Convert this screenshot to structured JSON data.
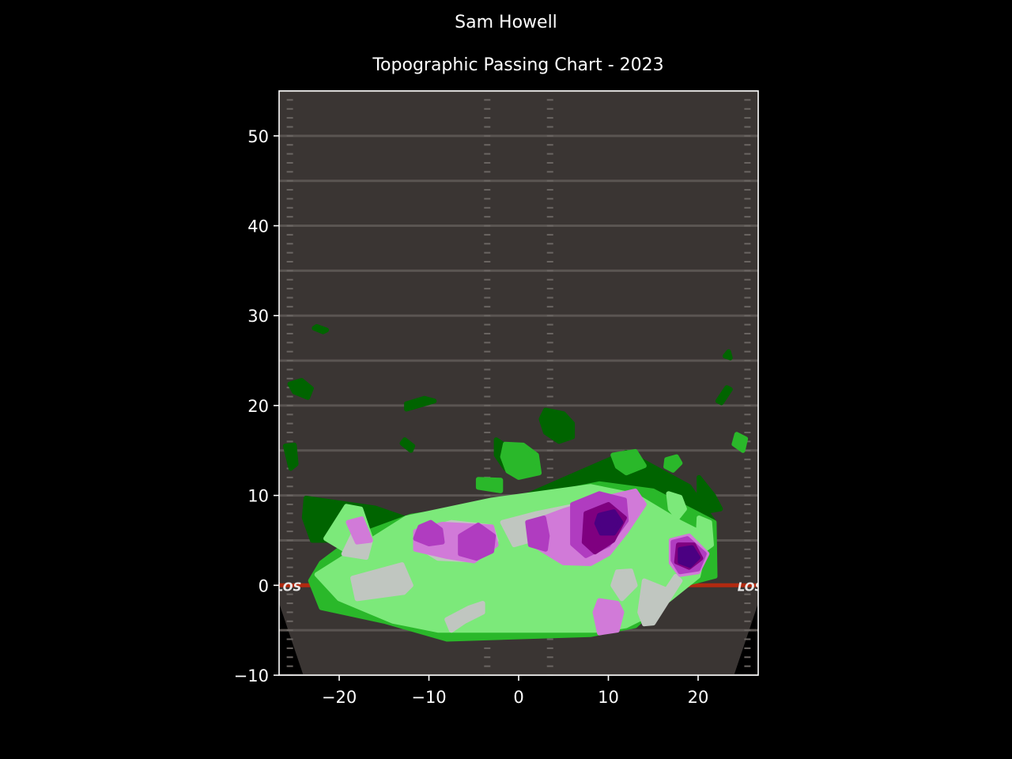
{
  "header": {
    "suptitle": "Sam Howell",
    "title": "Topographic Passing Chart - 2023"
  },
  "colors": {
    "background": "#000000",
    "field": "#3a3533",
    "yard_line": "#5a5552",
    "los_line": "#b22a10",
    "levels": [
      "#006400",
      "#2ab82a",
      "#7ce97a",
      "#c0c6c0",
      "#d17ad8",
      "#b03cc0",
      "#7f0080",
      "#4b0082"
    ]
  },
  "chart_data": {
    "type": "heatmap",
    "title": "Topographic Passing Chart - 2023",
    "suptitle": "Sam Howell",
    "xlabel": "",
    "ylabel": "",
    "xlim": [
      -26.7,
      26.7
    ],
    "ylim": [
      -10,
      55
    ],
    "xticks": [
      -20,
      -10,
      0,
      10,
      20
    ],
    "xtick_labels": [
      "−20",
      "−10",
      "0",
      "10",
      "20"
    ],
    "yticks": [
      -10,
      0,
      10,
      20,
      30,
      40,
      50
    ],
    "ytick_labels": [
      "−10",
      "0",
      "10",
      "20",
      "30",
      "40",
      "50"
    ],
    "line_of_scrimmage": 0,
    "field_label": "LOS",
    "grid": false,
    "legend": "none",
    "contour_levels": [
      {
        "level": 1,
        "color": "#006400",
        "regions": [
          [
            [
              -23.7,
              9.7
            ],
            [
              -16,
              8.6
            ],
            [
              -12.5,
              7.4
            ],
            [
              0,
              9.6
            ],
            [
              12,
              14.8
            ],
            [
              19,
              11
            ],
            [
              21.8,
              7
            ],
            [
              12,
              10
            ],
            [
              -20,
              5
            ],
            [
              -23,
              5
            ],
            [
              -23.9,
              7.5
            ]
          ],
          [
            [
              -2.5,
              16.2
            ],
            [
              -0.8,
              15.1
            ],
            [
              0,
              14
            ],
            [
              -0.5,
              13
            ],
            [
              -1.5,
              13
            ],
            [
              -2.5,
              14.5
            ]
          ],
          [
            [
              3,
              19.5
            ],
            [
              5,
              19.1
            ],
            [
              6,
              18
            ],
            [
              6,
              16.5
            ],
            [
              4.5,
              16
            ],
            [
              3,
              17
            ],
            [
              2.5,
              18.5
            ]
          ],
          [
            [
              -25.5,
              22.4
            ],
            [
              -24.2,
              22.8
            ],
            [
              -23.1,
              21.9
            ],
            [
              -23.5,
              20.9
            ],
            [
              -25,
              21.5
            ]
          ],
          [
            [
              -12.5,
              20.2
            ],
            [
              -10.5,
              20.8
            ],
            [
              -9.4,
              20.5
            ],
            [
              -12.5,
              19.6
            ]
          ],
          [
            [
              -22.5,
              28.8
            ],
            [
              -21.4,
              28.4
            ],
            [
              -21.8,
              28.2
            ],
            [
              -22.8,
              28.6
            ]
          ],
          [
            [
              22.2,
              20.5
            ],
            [
              23.2,
              22
            ],
            [
              23.6,
              21.8
            ],
            [
              22.6,
              20.3
            ]
          ],
          [
            [
              -26,
              15.5
            ],
            [
              -25.4,
              13
            ],
            [
              -24.8,
              13.5
            ],
            [
              -25,
              15.6
            ]
          ],
          [
            [
              -13,
              15.8
            ],
            [
              -12,
              15
            ],
            [
              -11.8,
              15.5
            ],
            [
              -12.7,
              16.2
            ]
          ],
          [
            [
              20.1,
              12
            ],
            [
              21.7,
              10
            ],
            [
              22.5,
              8.5
            ],
            [
              21.4,
              8.3
            ],
            [
              20.1,
              10.3
            ]
          ],
          [
            [
              23,
              25.5
            ],
            [
              23.4,
              26
            ],
            [
              23.6,
              25.3
            ]
          ]
        ]
      },
      {
        "level": 2,
        "color": "#2ab82a",
        "regions": [
          [
            [
              -22,
              2.5
            ],
            [
              -18,
              5.5
            ],
            [
              -12,
              7.7
            ],
            [
              0,
              9.5
            ],
            [
              9,
              11.3
            ],
            [
              15,
              10.5
            ],
            [
              21.8,
              7
            ],
            [
              21.9,
              1
            ],
            [
              18,
              0
            ],
            [
              13,
              -4.5
            ],
            [
              8,
              -5.5
            ],
            [
              -8,
              -6
            ],
            [
              -15,
              -4
            ],
            [
              -22,
              -2.5
            ],
            [
              -23.2,
              0.5
            ]
          ],
          [
            [
              -1.5,
              15.7
            ],
            [
              0.5,
              15.6
            ],
            [
              2,
              14.5
            ],
            [
              2.3,
              12.5
            ],
            [
              0,
              12
            ],
            [
              -1.2,
              12.7
            ],
            [
              -1.8,
              14.3
            ]
          ],
          [
            [
              10.5,
              14.5
            ],
            [
              13,
              14.9
            ],
            [
              14,
              13.3
            ],
            [
              12,
              12.5
            ],
            [
              11,
              13.2
            ]
          ],
          [
            [
              -4.5,
              11.8
            ],
            [
              -2,
              11.7
            ],
            [
              -2,
              10.5
            ],
            [
              -4.5,
              10.9
            ]
          ],
          [
            [
              16.5,
              14
            ],
            [
              17.6,
              14.3
            ],
            [
              18,
              13.6
            ],
            [
              17.2,
              12.8
            ],
            [
              16.4,
              13.2
            ]
          ],
          [
            [
              24.3,
              16.8
            ],
            [
              25.3,
              16.3
            ],
            [
              25,
              15
            ],
            [
              24,
              15.7
            ]
          ]
        ]
      },
      {
        "level": 3,
        "color": "#7ce97a",
        "regions": [
          [
            [
              -12.5,
              7.5
            ],
            [
              -3,
              9.5
            ],
            [
              8,
              11
            ],
            [
              13,
              10
            ],
            [
              18,
              7
            ],
            [
              21,
              5.5
            ],
            [
              20,
              1
            ],
            [
              15,
              -3
            ],
            [
              12,
              -4.5
            ],
            [
              9,
              -5
            ],
            [
              -9,
              -5
            ],
            [
              -14,
              -4
            ],
            [
              -20,
              -1.5
            ],
            [
              -22.5,
              1.2
            ]
          ],
          [
            [
              -19.2,
              8.8
            ],
            [
              -17.6,
              8.5
            ],
            [
              -16.4,
              5
            ],
            [
              -17.5,
              3.1
            ],
            [
              -19.5,
              4
            ],
            [
              -21.5,
              5.2
            ]
          ],
          [
            [
              16.7,
              10.2
            ],
            [
              18,
              9.8
            ],
            [
              18.5,
              8.5
            ],
            [
              17.7,
              7.5
            ],
            [
              16.9,
              8.5
            ]
          ],
          [
            [
              20.1,
              7.5
            ],
            [
              21.3,
              7
            ],
            [
              21.5,
              4.5
            ],
            [
              20.8,
              4
            ],
            [
              20,
              5.5
            ]
          ]
        ]
      },
      {
        "level": 4,
        "color": "#c0c6c0",
        "regions": [
          [
            [
              -18,
              -1.5
            ],
            [
              -12.8,
              -0.8
            ],
            [
              -12,
              0
            ],
            [
              -13,
              2.3
            ],
            [
              -18.5,
              0.8
            ]
          ],
          [
            [
              -8,
              -3.8
            ],
            [
              -5.5,
              -2.5
            ],
            [
              -4,
              -2
            ],
            [
              -4,
              -3
            ],
            [
              -6,
              -4
            ],
            [
              -7.5,
              -5
            ]
          ],
          [
            [
              -1.8,
              7
            ],
            [
              2,
              8
            ],
            [
              7,
              9
            ],
            [
              10,
              8.5
            ],
            [
              9,
              7
            ],
            [
              3,
              5.5
            ],
            [
              -0.5,
              4.5
            ]
          ],
          [
            [
              16.5,
              -0.5
            ],
            [
              17.5,
              1
            ],
            [
              18,
              0.5
            ],
            [
              15,
              -4.2
            ],
            [
              14,
              -4.3
            ],
            [
              13.5,
              -3
            ],
            [
              14,
              0.5
            ]
          ],
          [
            [
              11,
              1.5
            ],
            [
              12.5,
              1.6
            ],
            [
              13,
              0
            ],
            [
              11.5,
              -1.5
            ],
            [
              10.5,
              0
            ]
          ],
          [
            [
              -11,
              6
            ],
            [
              -7.5,
              7
            ],
            [
              -3,
              6.5
            ],
            [
              -2.5,
              5
            ],
            [
              -5,
              2.8
            ],
            [
              -9,
              3
            ],
            [
              -11.5,
              4.5
            ]
          ],
          [
            [
              -19.5,
              3.5
            ],
            [
              -17,
              3.1
            ],
            [
              -16.5,
              5
            ],
            [
              -17.8,
              7
            ]
          ]
        ]
      },
      {
        "level": 5,
        "color": "#d17ad8",
        "regions": [
          [
            [
              -11.5,
              6
            ],
            [
              -8.5,
              6.8
            ],
            [
              -3,
              6.5
            ],
            [
              -2.5,
              4.5
            ],
            [
              -5,
              2.7
            ],
            [
              -8,
              3.2
            ],
            [
              -11.5,
              4
            ]
          ],
          [
            [
              1.5,
              7
            ],
            [
              5,
              8.3
            ],
            [
              10,
              9.8
            ],
            [
              13,
              10.5
            ],
            [
              14,
              9
            ],
            [
              12,
              6
            ],
            [
              10,
              3.5
            ],
            [
              8,
              2.4
            ],
            [
              5,
              2.5
            ],
            [
              1.7,
              4.5
            ]
          ],
          [
            [
              -19,
              7
            ],
            [
              -17.5,
              7.4
            ],
            [
              -16.5,
              5
            ],
            [
              -18,
              4.8
            ]
          ],
          [
            [
              9,
              -1.7
            ],
            [
              11,
              -2
            ],
            [
              11.5,
              -3
            ],
            [
              11,
              -5
            ],
            [
              9,
              -5.3
            ],
            [
              8.5,
              -3
            ]
          ],
          [
            [
              17,
              5
            ],
            [
              19,
              5.5
            ],
            [
              21,
              3.5
            ],
            [
              20,
              1.5
            ],
            [
              18,
              1.2
            ],
            [
              17,
              2.5
            ]
          ]
        ]
      },
      {
        "level": 6,
        "color": "#b03cc0",
        "regions": [
          [
            [
              -11,
              6.5
            ],
            [
              -9.8,
              7
            ],
            [
              -8.7,
              6.2
            ],
            [
              -8.5,
              4.8
            ],
            [
              -10,
              4.6
            ],
            [
              -11.5,
              5.2
            ]
          ],
          [
            [
              -6.5,
              5.5
            ],
            [
              -4.5,
              6.7
            ],
            [
              -2.8,
              5.5
            ],
            [
              -3,
              3.8
            ],
            [
              -4.7,
              3
            ],
            [
              -6.5,
              3.5
            ]
          ],
          [
            [
              1,
              7
            ],
            [
              2.8,
              7.5
            ],
            [
              3.2,
              5.5
            ],
            [
              3,
              4
            ],
            [
              1.3,
              4.5
            ]
          ],
          [
            [
              6,
              9
            ],
            [
              9,
              10.2
            ],
            [
              11.8,
              9.5
            ],
            [
              12,
              7.2
            ],
            [
              10,
              4.5
            ],
            [
              7.5,
              3.3
            ],
            [
              6,
              4.6
            ]
          ],
          [
            [
              17.2,
              4.8
            ],
            [
              18.8,
              5.2
            ],
            [
              20.7,
              3.5
            ],
            [
              20,
              1.8
            ],
            [
              18,
              1.5
            ],
            [
              17.2,
              2.8
            ]
          ]
        ]
      },
      {
        "level": 7,
        "color": "#7f0080",
        "regions": [
          [
            [
              7.5,
              8
            ],
            [
              10,
              9
            ],
            [
              11.8,
              7.5
            ],
            [
              10.5,
              5
            ],
            [
              8.5,
              3.7
            ],
            [
              7.3,
              4.8
            ]
          ],
          [
            [
              17.8,
              4.5
            ],
            [
              19.5,
              4.5
            ],
            [
              20.3,
              3
            ],
            [
              19,
              2
            ],
            [
              17.6,
              2.6
            ]
          ]
        ]
      },
      {
        "level": 8,
        "color": "#4b0082",
        "regions": [
          [
            [
              9,
              7.8
            ],
            [
              10.6,
              8.2
            ],
            [
              11.4,
              7
            ],
            [
              10.6,
              5.8
            ],
            [
              9.2,
              5.8
            ],
            [
              8.7,
              6.9
            ]
          ],
          [
            [
              18,
              4
            ],
            [
              19.3,
              4.2
            ],
            [
              20,
              3.1
            ],
            [
              19.1,
              2.2
            ],
            [
              18,
              2.6
            ]
          ]
        ]
      }
    ]
  }
}
